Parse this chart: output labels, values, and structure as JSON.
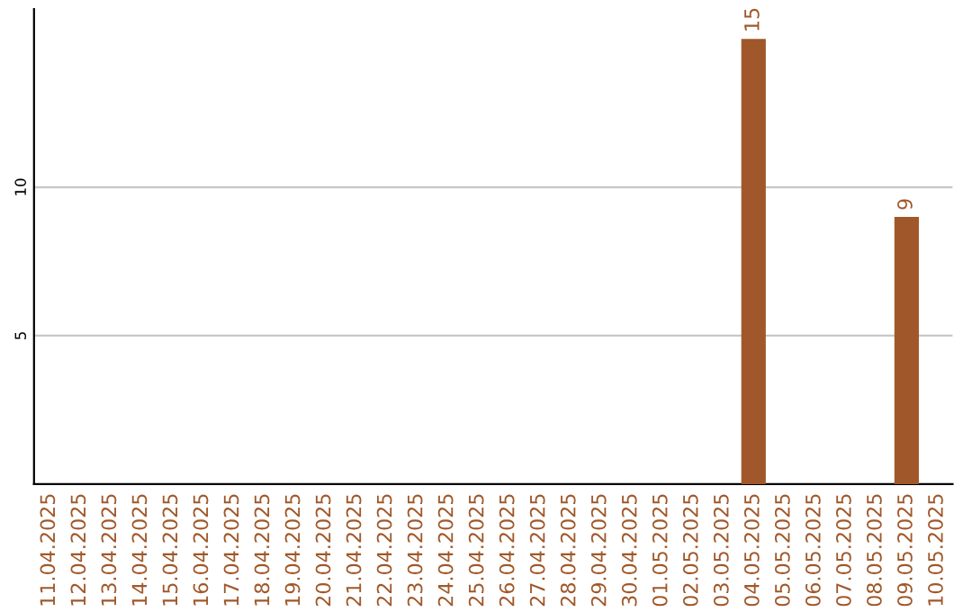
{
  "chart_data": {
    "type": "bar",
    "categories": [
      "11.04.2025",
      "12.04.2025",
      "13.04.2025",
      "14.04.2025",
      "15.04.2025",
      "16.04.2025",
      "17.04.2025",
      "18.04.2025",
      "19.04.2025",
      "20.04.2025",
      "21.04.2025",
      "22.04.2025",
      "23.04.2025",
      "24.04.2025",
      "25.04.2025",
      "26.04.2025",
      "27.04.2025",
      "28.04.2025",
      "29.04.2025",
      "30.04.2025",
      "01.05.2025",
      "02.05.2025",
      "03.05.2025",
      "04.05.2025",
      "05.05.2025",
      "06.05.2025",
      "07.05.2025",
      "08.05.2025",
      "09.05.2025",
      "10.05.2025"
    ],
    "values": [
      null,
      null,
      null,
      null,
      null,
      null,
      null,
      null,
      null,
      null,
      null,
      null,
      null,
      null,
      null,
      null,
      null,
      null,
      null,
      null,
      null,
      null,
      null,
      15,
      null,
      null,
      null,
      null,
      9,
      null
    ],
    "color": "#a0582a",
    "ylim": [
      0,
      16
    ],
    "yticks": [
      5,
      10
    ],
    "grid": "y",
    "data_labels": true
  }
}
